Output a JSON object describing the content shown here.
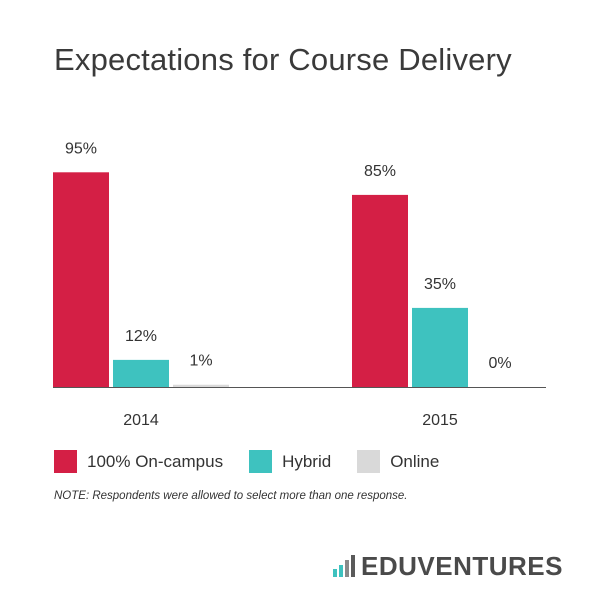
{
  "title": "Expectations for Course Delivery",
  "chart_data": {
    "type": "bar",
    "categories": [
      "2014",
      "2015"
    ],
    "series": [
      {
        "name": "100% On-campus",
        "values": [
          95,
          85
        ],
        "labels": [
          "95%",
          "85%"
        ],
        "color": "#d41f45"
      },
      {
        "name": "Hybrid",
        "values": [
          12,
          35
        ],
        "labels": [
          "12%",
          "35%"
        ],
        "color": "#3ec2bf"
      },
      {
        "name": "Online",
        "values": [
          1,
          0
        ],
        "labels": [
          "1%",
          "0%"
        ],
        "color": "#d9d9d9"
      }
    ],
    "ylim": [
      0,
      100
    ],
    "grid": false,
    "legend_position": "bottom-left"
  },
  "note": "NOTE: Respondents were allowed to select more than one response.",
  "logo": {
    "text": "EDUVENTURES",
    "icon_colors": [
      "#3ec2bf",
      "#3ec2bf",
      "#8a8a8a",
      "#5a5a5a"
    ]
  }
}
